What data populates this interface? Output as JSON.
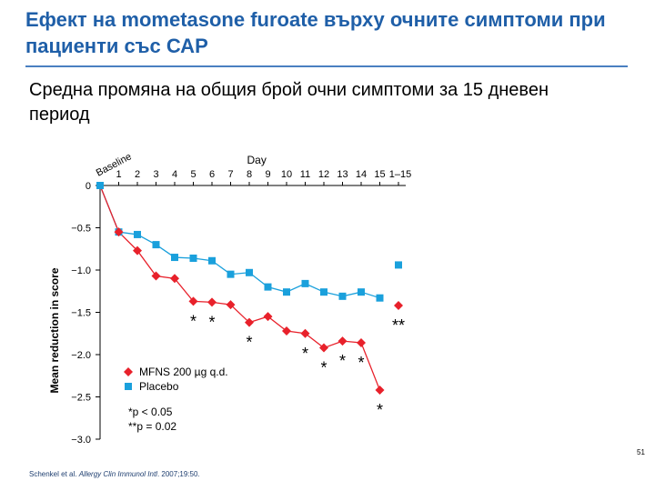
{
  "slide": {
    "title": "Ефект на mometasone furoate върху очните симптоми при пациенти със САР",
    "subtitle": "Средна промяна на общия брой очни симптоми за 15 дневен период",
    "page_number": "51",
    "citation": {
      "authors": "Schenkel et al. ",
      "journal": "Allergy Clin Immunol Intl",
      "details": ". 2007;19:50."
    }
  },
  "chart_data": {
    "type": "line",
    "xlabel": "Day",
    "ylabel": "Mean reduction in score",
    "x_ticks": [
      "Baseline",
      "1",
      "2",
      "3",
      "4",
      "5",
      "6",
      "7",
      "8",
      "9",
      "10",
      "11",
      "12",
      "13",
      "14",
      "15",
      "1–15"
    ],
    "y_ticks": [
      "0",
      "−0.5",
      "−1.0",
      "−1.5",
      "−2.0",
      "−2.5",
      "−3.0"
    ],
    "ylim": [
      -3.0,
      0
    ],
    "series": [
      {
        "name": "MFNS 200 µg q.d.",
        "color": "#e8212b",
        "marker": "diamond",
        "x": [
          0,
          1,
          2,
          3,
          4,
          5,
          6,
          7,
          8,
          9,
          10,
          11,
          12,
          13,
          14,
          15
        ],
        "values": [
          0,
          -0.55,
          -0.77,
          -1.07,
          -1.1,
          -1.37,
          -1.38,
          -1.41,
          -1.62,
          -1.55,
          -1.72,
          -1.75,
          -1.92,
          -1.84,
          -1.86,
          -2.42
        ],
        "overall": -1.42
      },
      {
        "name": "Placebo",
        "color": "#1aa0dc",
        "marker": "square",
        "x": [
          0,
          1,
          2,
          3,
          4,
          5,
          6,
          7,
          8,
          9,
          10,
          11,
          12,
          13,
          14,
          15
        ],
        "values": [
          0,
          -0.55,
          -0.58,
          -0.7,
          -0.85,
          -0.86,
          -0.89,
          -1.05,
          -1.03,
          -1.2,
          -1.26,
          -1.16,
          -1.26,
          -1.31,
          -1.26,
          -1.33
        ],
        "overall": -0.94
      }
    ],
    "significance": [
      {
        "x": 5,
        "mark": "*"
      },
      {
        "x": 6,
        "mark": "*"
      },
      {
        "x": 8,
        "mark": "*"
      },
      {
        "x": 11,
        "mark": "*"
      },
      {
        "x": 12,
        "mark": "*"
      },
      {
        "x": 13,
        "mark": "*"
      },
      {
        "x": 14,
        "mark": "*"
      },
      {
        "x": 15,
        "mark": "*"
      },
      {
        "x": 16,
        "mark": "**"
      }
    ],
    "legend_notes": [
      "*p < 0.05",
      "**p = 0.02"
    ]
  }
}
